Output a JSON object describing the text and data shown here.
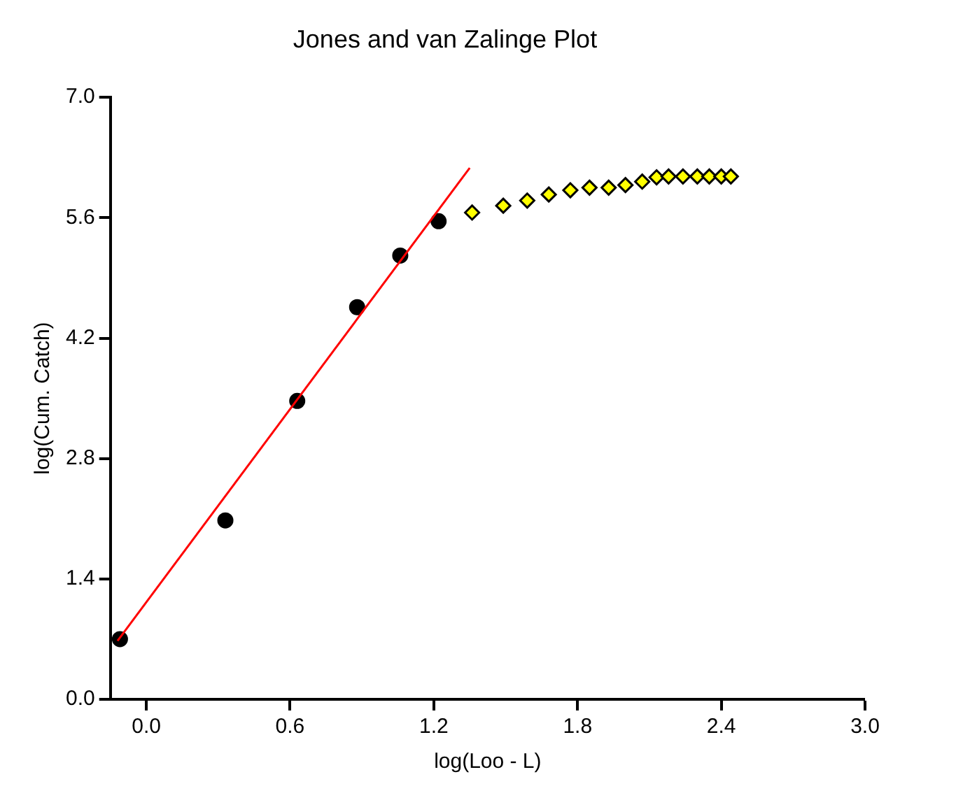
{
  "chart_data": {
    "type": "scatter",
    "title": "Jones and van Zalinge Plot",
    "xlabel": "log(Loo - L)",
    "ylabel": "log(Cum. Catch)",
    "xlim": [
      -0.15,
      3.0
    ],
    "xticks": [
      {
        "value": 0,
        "label": "0.0"
      },
      0.6,
      1.2,
      1.8,
      2.4,
      {
        "value": 3,
        "label": "3.0"
      }
    ],
    "ylim": [
      0.0,
      7.0
    ],
    "yticks": [
      {
        "value": 0,
        "label": "0.0"
      },
      1.4,
      2.8,
      4.2,
      5.6,
      {
        "value": 7,
        "label": "7.0"
      }
    ],
    "series": [
      {
        "color": "#000000",
        "marker": "circle",
        "x": [
          -0.11,
          0.33,
          0.63,
          0.88,
          1.06,
          1.22
        ],
        "values": [
          0.7,
          2.08,
          3.47,
          4.56,
          5.16,
          5.56
        ]
      },
      {
        "color": "#ffff00",
        "marker": "diamond",
        "x": [
          1.36,
          1.49,
          1.59,
          1.68,
          1.77,
          1.85,
          1.93,
          2.0,
          2.07,
          2.13,
          2.18,
          2.24,
          2.3,
          2.35,
          2.4,
          2.44
        ],
        "values": [
          5.66,
          5.74,
          5.8,
          5.87,
          5.92,
          5.95,
          5.95,
          5.98,
          6.02,
          6.07,
          6.08,
          6.08,
          6.08,
          6.08,
          6.08,
          6.08
        ]
      },
      {
        "type": "line",
        "color": "#ff0000",
        "marker": "none",
        "line_style": "solid",
        "x": [
          -0.12,
          1.35
        ],
        "values": [
          0.68,
          6.18
        ]
      }
    ]
  }
}
